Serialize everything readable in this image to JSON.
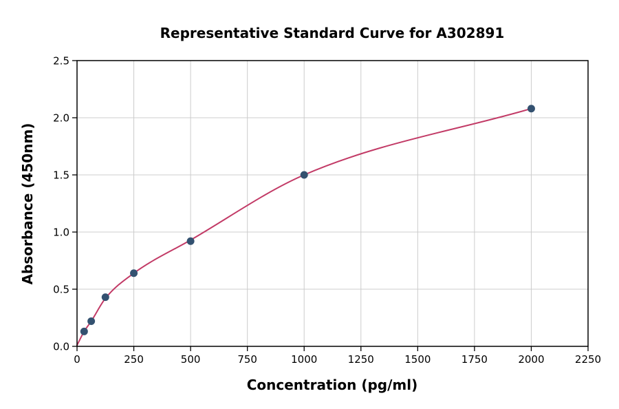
{
  "chart_data": {
    "type": "scatter",
    "title": "Representative Standard Curve for A302891",
    "xlabel": "Concentration (pg/ml)",
    "ylabel": "Absorbance (450nm)",
    "xlim": [
      0,
      2250
    ],
    "ylim": [
      0,
      2.5
    ],
    "xticks": [
      0,
      250,
      500,
      750,
      1000,
      1250,
      1500,
      1750,
      2000,
      2250
    ],
    "yticks": [
      "0.0",
      "0.5",
      "1.0",
      "1.5",
      "2.0",
      "2.5"
    ],
    "grid": true,
    "grid_color": "#cccccc",
    "background_color": "#ffffff",
    "legend": false,
    "series": [
      {
        "name": "fit-curve",
        "type": "line",
        "color": "#c23a66",
        "line_width": 2,
        "x": [
          0,
          31.25,
          62.5,
          125,
          250,
          500,
          1000,
          2000
        ],
        "y": [
          0.01,
          0.13,
          0.22,
          0.42,
          0.64,
          0.93,
          1.5,
          2.08
        ]
      },
      {
        "name": "standards",
        "type": "scatter",
        "color": "#335170",
        "marker_size": 5.5,
        "x": [
          31.25,
          62.5,
          125,
          250,
          500,
          1000,
          2000
        ],
        "y": [
          0.13,
          0.22,
          0.43,
          0.64,
          0.92,
          1.5,
          2.08
        ]
      }
    ]
  }
}
